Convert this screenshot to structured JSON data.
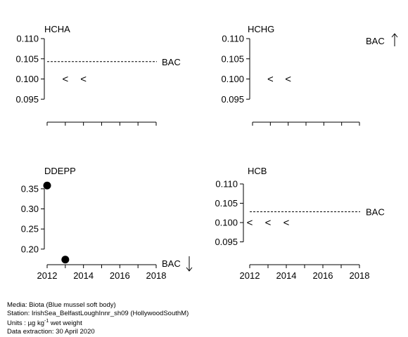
{
  "chart_data": [
    {
      "type": "scatter",
      "title": "HCHA",
      "xlim": [
        2012,
        2018
      ],
      "ylim": [
        0.09,
        0.11
      ],
      "yticks": [
        "0.110",
        "0.105",
        "0.100",
        "0.095"
      ],
      "ytick_values": [
        0.11,
        0.105,
        0.1,
        0.095
      ],
      "xticks": [],
      "reference": {
        "label": "BAC",
        "value": 0.1043,
        "arrow": ""
      },
      "points": [
        {
          "x": 2013,
          "y": 0.1,
          "marker": "<",
          "label": "<"
        },
        {
          "x": 2014,
          "y": 0.1,
          "marker": "<",
          "label": "<"
        }
      ]
    },
    {
      "type": "scatter",
      "title": "HCHG",
      "xlim": [
        2012,
        2018
      ],
      "ylim": [
        0.09,
        0.11
      ],
      "yticks": [
        "0.110",
        "0.105",
        "0.100",
        "0.095"
      ],
      "ytick_values": [
        0.11,
        0.105,
        0.1,
        0.095
      ],
      "xticks": [],
      "reference": {
        "label": "BAC",
        "value": null,
        "arrow": "↑"
      },
      "points": [
        {
          "x": 2013,
          "y": 0.1,
          "marker": "<",
          "label": "<"
        },
        {
          "x": 2014,
          "y": 0.1,
          "marker": "<",
          "label": "<"
        }
      ]
    },
    {
      "type": "scatter",
      "title": "DDEPP",
      "xlim": [
        2012,
        2018
      ],
      "ylim": [
        0.17,
        0.362
      ],
      "yticks": [
        "0.35",
        "0.30",
        "0.25",
        "0.20"
      ],
      "ytick_values": [
        0.35,
        0.3,
        0.25,
        0.2
      ],
      "xticks": [
        "2012",
        "2014",
        "2016",
        "2018"
      ],
      "reference": {
        "label": "BAC",
        "value": null,
        "arrow": "↓"
      },
      "points": [
        {
          "x": 2012,
          "y": 0.358,
          "marker": "dot"
        },
        {
          "x": 2013,
          "y": 0.174,
          "marker": "dot"
        }
      ]
    },
    {
      "type": "scatter",
      "title": "HCB",
      "xlim": [
        2012,
        2018
      ],
      "ylim": [
        0.09,
        0.11
      ],
      "yticks": [
        "0.110",
        "0.105",
        "0.100",
        "0.095"
      ],
      "ytick_values": [
        0.11,
        0.105,
        0.1,
        0.095
      ],
      "xticks": [
        "2012",
        "2014",
        "2016",
        "2018"
      ],
      "reference": {
        "label": "BAC",
        "value": 0.1028,
        "arrow": ""
      },
      "points": [
        {
          "x": 2012,
          "y": 0.1,
          "marker": "<",
          "label": "<"
        },
        {
          "x": 2013,
          "y": 0.1,
          "marker": "<",
          "label": "<"
        },
        {
          "x": 2014,
          "y": 0.1,
          "marker": "<",
          "label": "<"
        }
      ]
    }
  ],
  "footer": {
    "media": "Media: Biota (Blue mussel soft body)",
    "station": "Station: IrishSea_BelfastLoughInnr_sh09 (HollywoodSouthM)",
    "units_prefix": "Units : ",
    "units_mu": "µg kg",
    "units_sup": "-1",
    "units_suffix": " wet weight",
    "extraction": "Data extraction: 30 April 2020"
  }
}
